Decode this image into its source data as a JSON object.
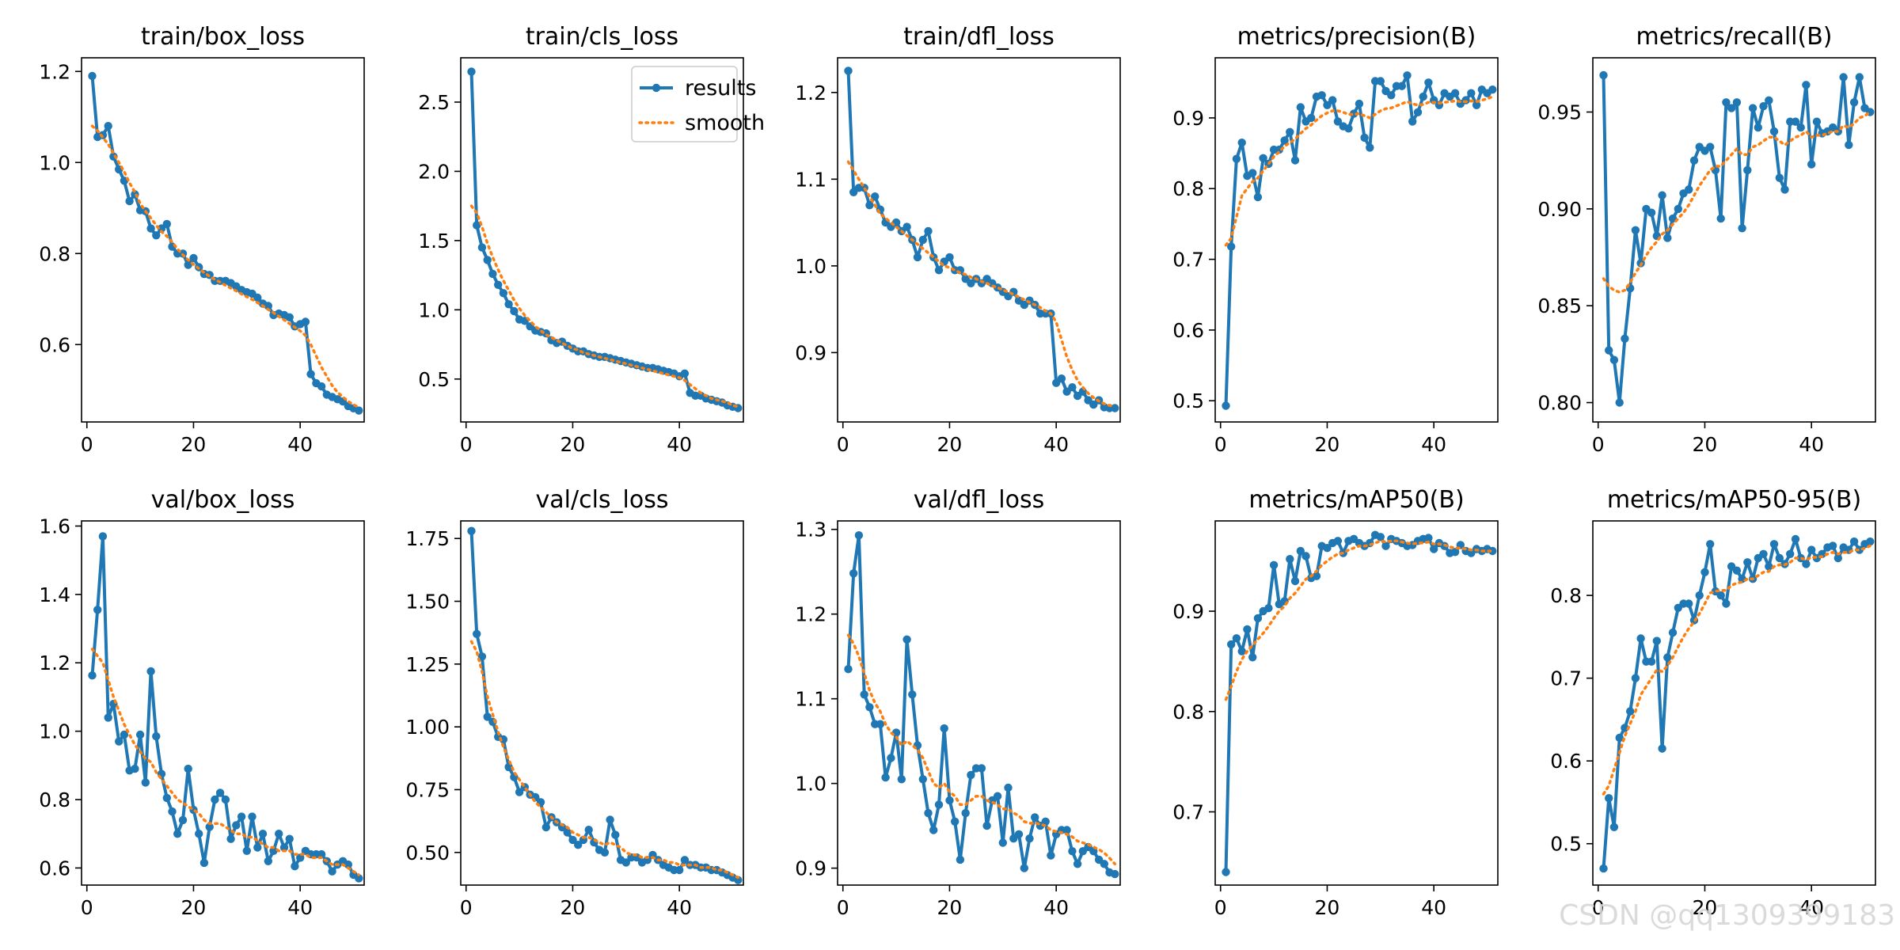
{
  "watermark": "CSDN @qq1309399183",
  "legend": {
    "results": "results",
    "smooth": "smooth"
  },
  "colors": {
    "results": "#1f77b4",
    "smooth": "#ff7f0e",
    "axis": "#000000",
    "background": "#ffffff"
  },
  "chart_data": [
    {
      "type": "line",
      "title": "train/box_loss",
      "xlim": [
        -1,
        52
      ],
      "ylim": [
        0.43,
        1.23
      ],
      "xticks": [
        0,
        20,
        40
      ],
      "yticks": [
        0.6,
        0.8,
        1.0,
        1.2
      ],
      "ytick_labels": [
        "0.6",
        "0.8",
        "1.0",
        "1.2"
      ],
      "legend": false,
      "results": [
        1.19,
        1.056,
        1.06,
        1.08,
        1.013,
        0.985,
        0.96,
        0.915,
        0.93,
        0.895,
        0.893,
        0.855,
        0.84,
        0.855,
        0.865,
        0.815,
        0.8,
        0.8,
        0.775,
        0.79,
        0.77,
        0.755,
        0.753,
        0.74,
        0.74,
        0.74,
        0.735,
        0.728,
        0.72,
        0.715,
        0.712,
        0.703,
        0.69,
        0.685,
        0.665,
        0.668,
        0.665,
        0.66,
        0.64,
        0.645,
        0.65,
        0.535,
        0.515,
        0.508,
        0.49,
        0.485,
        0.48,
        0.475,
        0.465,
        0.46,
        0.455
      ],
      "smooth": [
        1.08,
        1.07,
        1.055,
        1.04,
        1.02,
        1.0,
        0.98,
        0.955,
        0.935,
        0.91,
        0.893,
        0.878,
        0.862,
        0.848,
        0.838,
        0.825,
        0.81,
        0.797,
        0.786,
        0.776,
        0.767,
        0.758,
        0.75,
        0.743,
        0.737,
        0.73,
        0.724,
        0.718,
        0.711,
        0.705,
        0.699,
        0.692,
        0.685,
        0.677,
        0.67,
        0.662,
        0.654,
        0.646,
        0.638,
        0.63,
        0.62,
        0.6,
        0.575,
        0.55,
        0.53,
        0.51,
        0.495,
        0.485,
        0.475,
        0.468,
        0.462
      ]
    },
    {
      "type": "line",
      "title": "train/cls_loss",
      "xlim": [
        -1,
        52
      ],
      "ylim": [
        0.19,
        2.82
      ],
      "xticks": [
        0,
        20,
        40
      ],
      "yticks": [
        0.5,
        1.0,
        1.5,
        2.0,
        2.5
      ],
      "ytick_labels": [
        "0.5",
        "1.0",
        "1.5",
        "2.0",
        "2.5"
      ],
      "legend": true,
      "results": [
        2.72,
        1.61,
        1.45,
        1.36,
        1.26,
        1.18,
        1.12,
        1.04,
        0.99,
        0.93,
        0.92,
        0.88,
        0.85,
        0.84,
        0.83,
        0.78,
        0.76,
        0.77,
        0.74,
        0.72,
        0.7,
        0.7,
        0.68,
        0.67,
        0.66,
        0.66,
        0.65,
        0.64,
        0.63,
        0.62,
        0.61,
        0.6,
        0.59,
        0.58,
        0.58,
        0.57,
        0.56,
        0.55,
        0.54,
        0.52,
        0.54,
        0.4,
        0.38,
        0.38,
        0.36,
        0.35,
        0.34,
        0.33,
        0.31,
        0.3,
        0.29
      ],
      "smooth": [
        1.75,
        1.7,
        1.6,
        1.48,
        1.38,
        1.29,
        1.21,
        1.14,
        1.07,
        1.01,
        0.96,
        0.92,
        0.88,
        0.85,
        0.82,
        0.8,
        0.78,
        0.76,
        0.74,
        0.72,
        0.71,
        0.69,
        0.68,
        0.67,
        0.66,
        0.65,
        0.64,
        0.63,
        0.62,
        0.61,
        0.6,
        0.59,
        0.58,
        0.57,
        0.56,
        0.55,
        0.54,
        0.53,
        0.52,
        0.51,
        0.49,
        0.46,
        0.43,
        0.4,
        0.38,
        0.36,
        0.35,
        0.34,
        0.33,
        0.31,
        0.3
      ]
    },
    {
      "type": "line",
      "title": "train/dfl_loss",
      "xlim": [
        -1,
        52
      ],
      "ylim": [
        0.82,
        1.24
      ],
      "xticks": [
        0,
        20,
        40
      ],
      "yticks": [
        0.9,
        1.0,
        1.1,
        1.2
      ],
      "ytick_labels": [
        "0.9",
        "1.0",
        "1.1",
        "1.2"
      ],
      "legend": false,
      "results": [
        1.225,
        1.085,
        1.09,
        1.09,
        1.07,
        1.08,
        1.065,
        1.05,
        1.045,
        1.05,
        1.04,
        1.045,
        1.03,
        1.01,
        1.03,
        1.04,
        1.01,
        0.995,
        1.005,
        1.01,
        0.995,
        0.995,
        0.985,
        0.98,
        0.985,
        0.98,
        0.985,
        0.98,
        0.975,
        0.97,
        0.965,
        0.97,
        0.96,
        0.955,
        0.96,
        0.955,
        0.945,
        0.945,
        0.945,
        0.865,
        0.87,
        0.855,
        0.86,
        0.85,
        0.855,
        0.845,
        0.84,
        0.845,
        0.837,
        0.836,
        0.836
      ],
      "smooth": [
        1.12,
        1.11,
        1.1,
        1.09,
        1.08,
        1.07,
        1.06,
        1.055,
        1.05,
        1.045,
        1.04,
        1.035,
        1.03,
        1.025,
        1.02,
        1.015,
        1.01,
        1.005,
        1.0,
        0.998,
        0.995,
        0.992,
        0.99,
        0.987,
        0.985,
        0.982,
        0.98,
        0.977,
        0.975,
        0.972,
        0.97,
        0.967,
        0.964,
        0.961,
        0.958,
        0.955,
        0.952,
        0.948,
        0.945,
        0.935,
        0.915,
        0.895,
        0.88,
        0.868,
        0.86,
        0.853,
        0.848,
        0.844,
        0.841,
        0.839,
        0.838
      ]
    },
    {
      "type": "line",
      "title": "metrics/precision(B)",
      "xlim": [
        -1,
        52
      ],
      "ylim": [
        0.47,
        0.985
      ],
      "xticks": [
        0,
        20,
        40
      ],
      "yticks": [
        0.5,
        0.6,
        0.7,
        0.8,
        0.9
      ],
      "ytick_labels": [
        "0.5",
        "0.6",
        "0.7",
        "0.8",
        "0.9"
      ],
      "legend": false,
      "results": [
        0.493,
        0.718,
        0.842,
        0.865,
        0.818,
        0.822,
        0.788,
        0.843,
        0.835,
        0.855,
        0.855,
        0.868,
        0.88,
        0.84,
        0.915,
        0.895,
        0.9,
        0.93,
        0.932,
        0.918,
        0.925,
        0.895,
        0.888,
        0.885,
        0.906,
        0.92,
        0.872,
        0.858,
        0.952,
        0.952,
        0.938,
        0.932,
        0.945,
        0.945,
        0.96,
        0.895,
        0.908,
        0.93,
        0.95,
        0.925,
        0.918,
        0.935,
        0.93,
        0.935,
        0.92,
        0.925,
        0.935,
        0.918,
        0.94,
        0.935,
        0.94
      ],
      "smooth": [
        0.72,
        0.73,
        0.76,
        0.79,
        0.8,
        0.81,
        0.815,
        0.825,
        0.835,
        0.845,
        0.852,
        0.86,
        0.865,
        0.87,
        0.878,
        0.885,
        0.89,
        0.897,
        0.903,
        0.907,
        0.91,
        0.91,
        0.908,
        0.905,
        0.905,
        0.906,
        0.903,
        0.9,
        0.905,
        0.91,
        0.913,
        0.914,
        0.917,
        0.92,
        0.923,
        0.92,
        0.918,
        0.919,
        0.922,
        0.922,
        0.921,
        0.922,
        0.923,
        0.924,
        0.923,
        0.923,
        0.924,
        0.923,
        0.925,
        0.927,
        0.93
      ]
    },
    {
      "type": "line",
      "title": "metrics/recall(B)",
      "xlim": [
        -1,
        52
      ],
      "ylim": [
        0.79,
        0.978
      ],
      "xticks": [
        0,
        20,
        40
      ],
      "yticks": [
        0.8,
        0.85,
        0.9,
        0.95
      ],
      "ytick_labels": [
        "0.80",
        "0.85",
        "0.90",
        "0.95"
      ],
      "legend": false,
      "results": [
        0.969,
        0.827,
        0.822,
        0.8,
        0.833,
        0.859,
        0.889,
        0.872,
        0.9,
        0.898,
        0.886,
        0.907,
        0.885,
        0.895,
        0.9,
        0.908,
        0.91,
        0.925,
        0.932,
        0.93,
        0.932,
        0.92,
        0.895,
        0.955,
        0.952,
        0.955,
        0.89,
        0.92,
        0.952,
        0.942,
        0.953,
        0.956,
        0.94,
        0.916,
        0.91,
        0.945,
        0.945,
        0.942,
        0.964,
        0.923,
        0.945,
        0.939,
        0.94,
        0.942,
        0.94,
        0.968,
        0.933,
        0.955,
        0.968,
        0.952,
        0.95
      ],
      "smooth": [
        0.864,
        0.86,
        0.858,
        0.857,
        0.858,
        0.862,
        0.867,
        0.871,
        0.876,
        0.88,
        0.883,
        0.887,
        0.889,
        0.892,
        0.895,
        0.898,
        0.902,
        0.907,
        0.912,
        0.916,
        0.92,
        0.922,
        0.922,
        0.925,
        0.928,
        0.931,
        0.928,
        0.928,
        0.932,
        0.933,
        0.935,
        0.937,
        0.937,
        0.935,
        0.933,
        0.935,
        0.937,
        0.938,
        0.94,
        0.937,
        0.938,
        0.938,
        0.939,
        0.94,
        0.94,
        0.943,
        0.942,
        0.944,
        0.947,
        0.948,
        0.95
      ]
    },
    {
      "type": "line",
      "title": "val/box_loss",
      "xlim": [
        -1,
        52
      ],
      "ylim": [
        0.55,
        1.615
      ],
      "xticks": [
        0,
        20,
        40
      ],
      "yticks": [
        0.6,
        0.8,
        1.0,
        1.2,
        1.4,
        1.6
      ],
      "ytick_labels": [
        "0.6",
        "0.8",
        "1.0",
        "1.2",
        "1.4",
        "1.6"
      ],
      "legend": false,
      "results": [
        1.163,
        1.355,
        1.57,
        1.04,
        1.08,
        0.97,
        0.99,
        0.885,
        0.89,
        0.99,
        0.85,
        1.175,
        0.985,
        0.875,
        0.805,
        0.765,
        0.7,
        0.74,
        0.89,
        0.77,
        0.7,
        0.615,
        0.72,
        0.8,
        0.82,
        0.8,
        0.685,
        0.725,
        0.75,
        0.65,
        0.75,
        0.66,
        0.7,
        0.62,
        0.65,
        0.7,
        0.66,
        0.685,
        0.605,
        0.63,
        0.65,
        0.64,
        0.64,
        0.64,
        0.62,
        0.59,
        0.61,
        0.62,
        0.61,
        0.58,
        0.57
      ],
      "smooth": [
        1.24,
        1.22,
        1.2,
        1.15,
        1.1,
        1.06,
        1.02,
        0.99,
        0.96,
        0.94,
        0.92,
        0.91,
        0.88,
        0.86,
        0.84,
        0.82,
        0.8,
        0.79,
        0.78,
        0.77,
        0.76,
        0.74,
        0.73,
        0.73,
        0.73,
        0.72,
        0.71,
        0.7,
        0.7,
        0.69,
        0.69,
        0.68,
        0.67,
        0.66,
        0.66,
        0.65,
        0.65,
        0.65,
        0.64,
        0.64,
        0.64,
        0.63,
        0.63,
        0.63,
        0.62,
        0.61,
        0.61,
        0.61,
        0.6,
        0.59,
        0.58
      ]
    },
    {
      "type": "line",
      "title": "val/cls_loss",
      "xlim": [
        -1,
        52
      ],
      "ylim": [
        0.37,
        1.82
      ],
      "xticks": [
        0,
        20,
        40
      ],
      "yticks": [
        0.5,
        0.75,
        1.0,
        1.25,
        1.5,
        1.75
      ],
      "ytick_labels": [
        "0.50",
        "0.75",
        "1.00",
        "1.25",
        "1.50",
        "1.75"
      ],
      "legend": false,
      "results": [
        1.78,
        1.37,
        1.28,
        1.04,
        1.02,
        0.96,
        0.95,
        0.84,
        0.8,
        0.74,
        0.76,
        0.73,
        0.72,
        0.7,
        0.6,
        0.64,
        0.62,
        0.6,
        0.58,
        0.55,
        0.53,
        0.55,
        0.59,
        0.54,
        0.51,
        0.5,
        0.63,
        0.57,
        0.47,
        0.46,
        0.48,
        0.48,
        0.46,
        0.47,
        0.49,
        0.47,
        0.45,
        0.44,
        0.43,
        0.43,
        0.47,
        0.45,
        0.45,
        0.44,
        0.44,
        0.43,
        0.43,
        0.42,
        0.41,
        0.4,
        0.39
      ],
      "smooth": [
        1.34,
        1.3,
        1.22,
        1.12,
        1.05,
        0.98,
        0.92,
        0.87,
        0.82,
        0.79,
        0.76,
        0.73,
        0.7,
        0.68,
        0.66,
        0.64,
        0.62,
        0.61,
        0.6,
        0.58,
        0.57,
        0.56,
        0.56,
        0.55,
        0.54,
        0.53,
        0.54,
        0.53,
        0.52,
        0.5,
        0.49,
        0.49,
        0.48,
        0.48,
        0.48,
        0.47,
        0.47,
        0.46,
        0.46,
        0.45,
        0.45,
        0.45,
        0.45,
        0.44,
        0.44,
        0.44,
        0.43,
        0.43,
        0.42,
        0.41,
        0.4
      ]
    },
    {
      "type": "line",
      "title": "val/dfl_loss",
      "xlim": [
        -1,
        52
      ],
      "ylim": [
        0.88,
        1.31
      ],
      "xticks": [
        0,
        20,
        40
      ],
      "yticks": [
        0.9,
        1.0,
        1.1,
        1.2,
        1.3
      ],
      "ytick_labels": [
        "0.9",
        "1.0",
        "1.1",
        "1.2",
        "1.3"
      ],
      "legend": false,
      "results": [
        1.135,
        1.248,
        1.293,
        1.105,
        1.09,
        1.07,
        1.07,
        1.007,
        1.03,
        1.06,
        1.005,
        1.17,
        1.105,
        1.045,
        1.005,
        0.965,
        0.945,
        0.975,
        1.065,
        0.98,
        0.955,
        0.91,
        0.965,
        1.01,
        1.018,
        1.018,
        0.95,
        0.98,
        0.985,
        0.93,
        0.995,
        0.935,
        0.94,
        0.9,
        0.935,
        0.96,
        0.95,
        0.955,
        0.915,
        0.94,
        0.945,
        0.945,
        0.92,
        0.905,
        0.92,
        0.925,
        0.92,
        0.91,
        0.905,
        0.895,
        0.893
      ],
      "smooth": [
        1.175,
        1.165,
        1.15,
        1.13,
        1.11,
        1.095,
        1.085,
        1.07,
        1.06,
        1.055,
        1.045,
        1.05,
        1.045,
        1.04,
        1.03,
        1.015,
        1.0,
        0.995,
        1.0,
        0.99,
        0.985,
        0.975,
        0.975,
        0.98,
        0.985,
        0.985,
        0.98,
        0.978,
        0.975,
        0.97,
        0.97,
        0.965,
        0.962,
        0.955,
        0.953,
        0.953,
        0.952,
        0.95,
        0.945,
        0.943,
        0.942,
        0.94,
        0.937,
        0.932,
        0.93,
        0.928,
        0.925,
        0.922,
        0.918,
        0.912,
        0.905
      ]
    },
    {
      "type": "line",
      "title": "metrics/mAP50(B)",
      "xlim": [
        -1,
        52
      ],
      "ylim": [
        0.627,
        0.99
      ],
      "xticks": [
        0,
        20,
        40
      ],
      "yticks": [
        0.7,
        0.8,
        0.9
      ],
      "ytick_labels": [
        "0.7",
        "0.8",
        "0.9"
      ],
      "legend": false,
      "results": [
        0.64,
        0.867,
        0.873,
        0.86,
        0.882,
        0.854,
        0.893,
        0.9,
        0.903,
        0.946,
        0.907,
        0.91,
        0.952,
        0.93,
        0.96,
        0.955,
        0.933,
        0.935,
        0.965,
        0.963,
        0.968,
        0.97,
        0.958,
        0.97,
        0.972,
        0.968,
        0.965,
        0.968,
        0.976,
        0.974,
        0.965,
        0.972,
        0.97,
        0.968,
        0.965,
        0.966,
        0.97,
        0.972,
        0.973,
        0.962,
        0.968,
        0.965,
        0.958,
        0.959,
        0.966,
        0.96,
        0.958,
        0.962,
        0.96,
        0.962,
        0.96
      ],
      "smooth": [
        0.812,
        0.825,
        0.84,
        0.852,
        0.86,
        0.866,
        0.872,
        0.878,
        0.885,
        0.893,
        0.9,
        0.905,
        0.913,
        0.918,
        0.925,
        0.932,
        0.935,
        0.94,
        0.946,
        0.95,
        0.954,
        0.957,
        0.958,
        0.961,
        0.963,
        0.965,
        0.965,
        0.966,
        0.968,
        0.97,
        0.969,
        0.97,
        0.97,
        0.969,
        0.968,
        0.967,
        0.968,
        0.968,
        0.969,
        0.967,
        0.967,
        0.966,
        0.964,
        0.963,
        0.963,
        0.962,
        0.961,
        0.961,
        0.96,
        0.96,
        0.96
      ]
    },
    {
      "type": "line",
      "title": "metrics/mAP50-95(B)",
      "xlim": [
        -1,
        52
      ],
      "ylim": [
        0.45,
        0.89
      ],
      "xticks": [
        0,
        20,
        40
      ],
      "yticks": [
        0.5,
        0.6,
        0.7,
        0.8
      ],
      "ytick_labels": [
        "0.5",
        "0.6",
        "0.7",
        "0.8"
      ],
      "legend": false,
      "results": [
        0.47,
        0.555,
        0.52,
        0.628,
        0.64,
        0.66,
        0.7,
        0.748,
        0.72,
        0.72,
        0.745,
        0.615,
        0.725,
        0.755,
        0.785,
        0.79,
        0.79,
        0.77,
        0.8,
        0.828,
        0.862,
        0.805,
        0.8,
        0.79,
        0.835,
        0.83,
        0.82,
        0.84,
        0.82,
        0.845,
        0.85,
        0.835,
        0.862,
        0.845,
        0.838,
        0.85,
        0.868,
        0.845,
        0.838,
        0.855,
        0.845,
        0.85,
        0.858,
        0.86,
        0.845,
        0.858,
        0.855,
        0.865,
        0.855,
        0.862,
        0.865
      ],
      "smooth": [
        0.56,
        0.57,
        0.59,
        0.61,
        0.63,
        0.645,
        0.66,
        0.68,
        0.69,
        0.7,
        0.71,
        0.708,
        0.715,
        0.725,
        0.738,
        0.75,
        0.76,
        0.768,
        0.778,
        0.79,
        0.803,
        0.805,
        0.806,
        0.806,
        0.812,
        0.815,
        0.816,
        0.82,
        0.82,
        0.824,
        0.828,
        0.829,
        0.835,
        0.837,
        0.837,
        0.84,
        0.845,
        0.845,
        0.843,
        0.846,
        0.846,
        0.847,
        0.85,
        0.852,
        0.85,
        0.852,
        0.852,
        0.855,
        0.855,
        0.857,
        0.86
      ]
    }
  ]
}
